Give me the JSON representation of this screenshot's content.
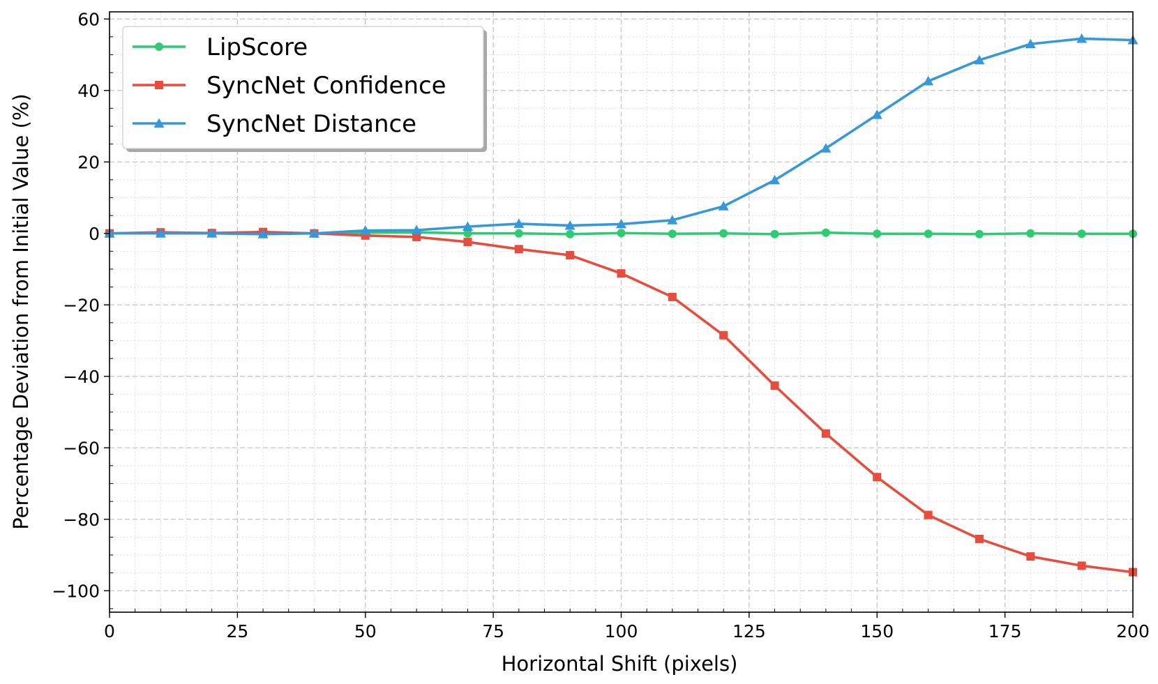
{
  "chart_data": {
    "type": "line",
    "title": "",
    "xlabel": "Horizontal Shift (pixels)",
    "ylabel": "Percentage Deviation from Initial Value (%)",
    "xlim": [
      0,
      200
    ],
    "ylim": [
      -106,
      62
    ],
    "xticks": [
      {
        "v": 0,
        "label": "0"
      },
      {
        "v": 25,
        "label": "25"
      },
      {
        "v": 50,
        "label": "50"
      },
      {
        "v": 75,
        "label": "75"
      },
      {
        "v": 100,
        "label": "100"
      },
      {
        "v": 125,
        "label": "125"
      },
      {
        "v": 150,
        "label": "150"
      },
      {
        "v": 175,
        "label": "175"
      },
      {
        "v": 200,
        "label": "200"
      }
    ],
    "yticks": [
      {
        "v": 60,
        "label": "60"
      },
      {
        "v": 40,
        "label": "40"
      },
      {
        "v": 20,
        "label": "20"
      },
      {
        "v": 0,
        "label": "0"
      },
      {
        "v": -20,
        "label": "−20"
      },
      {
        "v": -40,
        "label": "−40"
      },
      {
        "v": -60,
        "label": "−60"
      },
      {
        "v": -80,
        "label": "−80"
      },
      {
        "v": -100,
        "label": "−100"
      }
    ],
    "grid": true,
    "legend_position": "top-left",
    "x": [
      0,
      10,
      20,
      30,
      40,
      50,
      60,
      70,
      80,
      90,
      100,
      110,
      120,
      130,
      140,
      150,
      160,
      170,
      180,
      190,
      200
    ],
    "series": [
      {
        "name": "LipScore",
        "color": "#2ecc71",
        "marker": "circle",
        "values": [
          0,
          0.2,
          0.1,
          0.3,
          0,
          0.2,
          0.3,
          0,
          0,
          -0.2,
          0.1,
          -0.1,
          0,
          -0.2,
          0.2,
          -0.1,
          -0.1,
          -0.2,
          0,
          -0.1,
          -0.1
        ]
      },
      {
        "name": "SyncNet Confidence",
        "color": "#e74c3c",
        "marker": "square",
        "values": [
          0,
          0.3,
          0.1,
          0.4,
          0,
          -0.6,
          -1.0,
          -2.4,
          -4.4,
          -6.1,
          -11.2,
          -17.8,
          -28.5,
          -42.6,
          -56.0,
          -68.2,
          -78.8,
          -85.5,
          -90.4,
          -93.0,
          -94.8
        ]
      },
      {
        "name": "SyncNet Distance",
        "color": "#3498db",
        "marker": "triangle",
        "values": [
          0,
          0,
          0,
          -0.2,
          0,
          0.8,
          0.9,
          1.9,
          2.7,
          2.2,
          2.6,
          3.7,
          7.6,
          14.9,
          23.8,
          33.2,
          42.6,
          48.5,
          53.0,
          54.5,
          54.1
        ]
      }
    ]
  }
}
